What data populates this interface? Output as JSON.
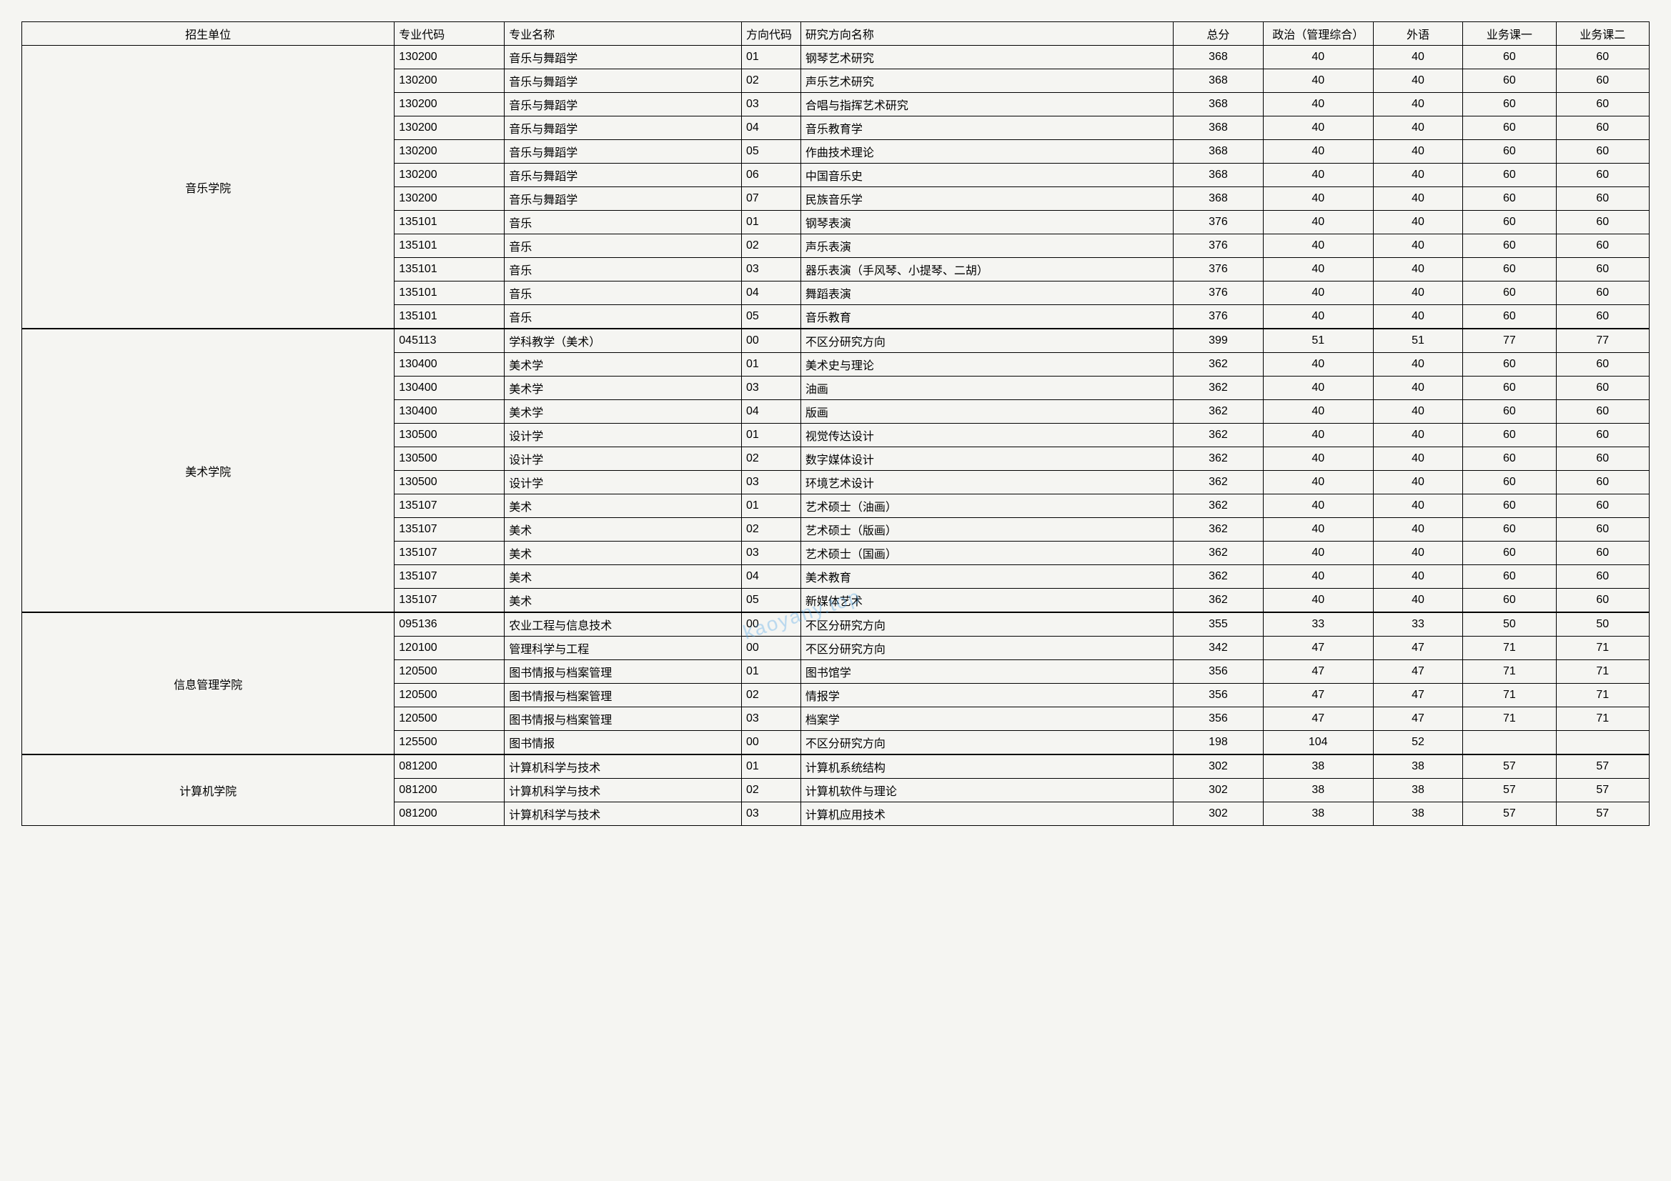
{
  "watermark": "kaoyany.top",
  "columns": [
    "招生单位",
    "专业代码",
    "专业名称",
    "方向代码",
    "研究方向名称",
    "总分",
    "政治（管理综合）",
    "外语",
    "业务课一",
    "业务课二"
  ],
  "col_classes": [
    "col-unit",
    "col-code",
    "col-major",
    "col-dircode",
    "col-dirname",
    "col-score",
    "col-pol",
    "col-lang",
    "col-sub1",
    "col-sub2"
  ],
  "groups": [
    {
      "unit": "音乐学院",
      "rows": [
        [
          "130200",
          "音乐与舞蹈学",
          "01",
          "钢琴艺术研究",
          "368",
          "40",
          "40",
          "60",
          "60"
        ],
        [
          "130200",
          "音乐与舞蹈学",
          "02",
          "声乐艺术研究",
          "368",
          "40",
          "40",
          "60",
          "60"
        ],
        [
          "130200",
          "音乐与舞蹈学",
          "03",
          "合唱与指挥艺术研究",
          "368",
          "40",
          "40",
          "60",
          "60"
        ],
        [
          "130200",
          "音乐与舞蹈学",
          "04",
          "音乐教育学",
          "368",
          "40",
          "40",
          "60",
          "60"
        ],
        [
          "130200",
          "音乐与舞蹈学",
          "05",
          "作曲技术理论",
          "368",
          "40",
          "40",
          "60",
          "60"
        ],
        [
          "130200",
          "音乐与舞蹈学",
          "06",
          "中国音乐史",
          "368",
          "40",
          "40",
          "60",
          "60"
        ],
        [
          "130200",
          "音乐与舞蹈学",
          "07",
          "民族音乐学",
          "368",
          "40",
          "40",
          "60",
          "60"
        ],
        [
          "135101",
          "音乐",
          "01",
          "钢琴表演",
          "376",
          "40",
          "40",
          "60",
          "60"
        ],
        [
          "135101",
          "音乐",
          "02",
          "声乐表演",
          "376",
          "40",
          "40",
          "60",
          "60"
        ],
        [
          "135101",
          "音乐",
          "03",
          "器乐表演（手风琴、小提琴、二胡）",
          "376",
          "40",
          "40",
          "60",
          "60"
        ],
        [
          "135101",
          "音乐",
          "04",
          "舞蹈表演",
          "376",
          "40",
          "40",
          "60",
          "60"
        ],
        [
          "135101",
          "音乐",
          "05",
          "音乐教育",
          "376",
          "40",
          "40",
          "60",
          "60"
        ]
      ]
    },
    {
      "unit": "美术学院",
      "rows": [
        [
          "045113",
          "学科教学（美术）",
          "00",
          "不区分研究方向",
          "399",
          "51",
          "51",
          "77",
          "77"
        ],
        [
          "130400",
          "美术学",
          "01",
          "美术史与理论",
          "362",
          "40",
          "40",
          "60",
          "60"
        ],
        [
          "130400",
          "美术学",
          "03",
          "油画",
          "362",
          "40",
          "40",
          "60",
          "60"
        ],
        [
          "130400",
          "美术学",
          "04",
          "版画",
          "362",
          "40",
          "40",
          "60",
          "60"
        ],
        [
          "130500",
          "设计学",
          "01",
          "视觉传达设计",
          "362",
          "40",
          "40",
          "60",
          "60"
        ],
        [
          "130500",
          "设计学",
          "02",
          "数字媒体设计",
          "362",
          "40",
          "40",
          "60",
          "60"
        ],
        [
          "130500",
          "设计学",
          "03",
          "环境艺术设计",
          "362",
          "40",
          "40",
          "60",
          "60"
        ],
        [
          "135107",
          "美术",
          "01",
          "艺术硕士（油画）",
          "362",
          "40",
          "40",
          "60",
          "60"
        ],
        [
          "135107",
          "美术",
          "02",
          "艺术硕士（版画）",
          "362",
          "40",
          "40",
          "60",
          "60"
        ],
        [
          "135107",
          "美术",
          "03",
          "艺术硕士（国画）",
          "362",
          "40",
          "40",
          "60",
          "60"
        ],
        [
          "135107",
          "美术",
          "04",
          "美术教育",
          "362",
          "40",
          "40",
          "60",
          "60"
        ],
        [
          "135107",
          "美术",
          "05",
          "新媒体艺术",
          "362",
          "40",
          "40",
          "60",
          "60"
        ]
      ]
    },
    {
      "unit": "信息管理学院",
      "rows": [
        [
          "095136",
          "农业工程与信息技术",
          "00",
          "不区分研究方向",
          "355",
          "33",
          "33",
          "50",
          "50"
        ],
        [
          "120100",
          "管理科学与工程",
          "00",
          "不区分研究方向",
          "342",
          "47",
          "47",
          "71",
          "71"
        ],
        [
          "120500",
          "图书情报与档案管理",
          "01",
          "图书馆学",
          "356",
          "47",
          "47",
          "71",
          "71"
        ],
        [
          "120500",
          "图书情报与档案管理",
          "02",
          "情报学",
          "356",
          "47",
          "47",
          "71",
          "71"
        ],
        [
          "120500",
          "图书情报与档案管理",
          "03",
          "档案学",
          "356",
          "47",
          "47",
          "71",
          "71"
        ],
        [
          "125500",
          "图书情报",
          "00",
          "不区分研究方向",
          "198",
          "104",
          "52",
          "",
          ""
        ]
      ]
    },
    {
      "unit": "计算机学院",
      "rows": [
        [
          "081200",
          "计算机科学与技术",
          "01",
          "计算机系统结构",
          "302",
          "38",
          "38",
          "57",
          "57"
        ],
        [
          "081200",
          "计算机科学与技术",
          "02",
          "计算机软件与理论",
          "302",
          "38",
          "38",
          "57",
          "57"
        ],
        [
          "081200",
          "计算机科学与技术",
          "03",
          "计算机应用技术",
          "302",
          "38",
          "38",
          "57",
          "57"
        ]
      ]
    }
  ]
}
